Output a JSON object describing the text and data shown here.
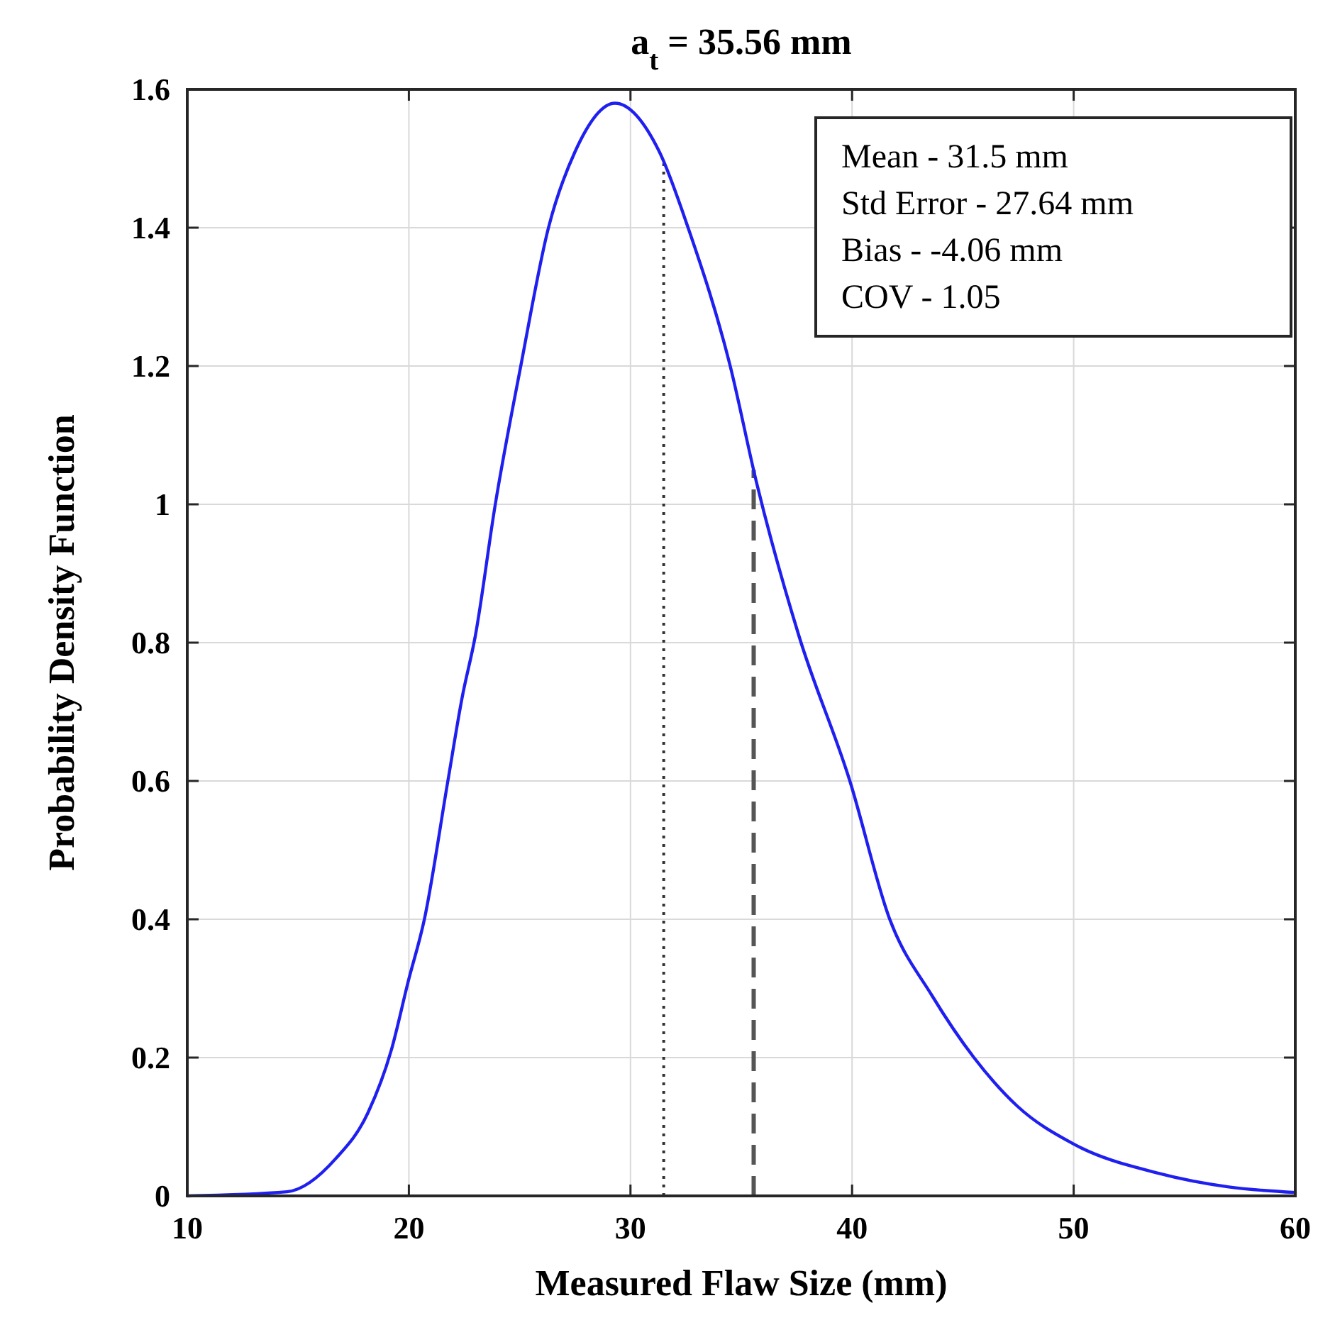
{
  "chart_data": {
    "type": "line",
    "title": "a$_{t}$ = 35.56 mm",
    "xlabel": "Measured Flaw Size (mm)",
    "ylabel": "Probability Density Function",
    "x": [
      10,
      14.5,
      16.7,
      18.15,
      19.2,
      19.97,
      20.7,
      21.76,
      22.4,
      23.0,
      23.9,
      25.05,
      26.3,
      27.5,
      29.3,
      31.3,
      32.6,
      34.5,
      35.7,
      37.6,
      39.9,
      41.7,
      43.6,
      45.5,
      47.45,
      50,
      53.8,
      57.0,
      60
    ],
    "series": [
      {
        "color": "#1f1ff0",
        "values": [
          0,
          0.006,
          0.054,
          0.12,
          0.21,
          0.31,
          0.4,
          0.6,
          0.72,
          0.81,
          1.0,
          1.2,
          1.4,
          1.51,
          1.58,
          1.51,
          1.4,
          1.2,
          1.03,
          0.81,
          0.6,
          0.4,
          0.29,
          0.2,
          0.13,
          0.075,
          0.033,
          0.013,
          0.005
        ]
      }
    ],
    "xlim": [
      10,
      60
    ],
    "xticks": [
      10,
      20,
      30,
      40,
      50,
      60
    ],
    "ylim": [
      0,
      1.6
    ],
    "yticks": [
      0,
      0.2,
      0.4,
      0.6,
      0.8,
      1,
      1.2,
      1.4,
      1.6
    ],
    "grid": true,
    "ref_lines": [
      {
        "axis": "x",
        "value": 31.5,
        "color": "#333333",
        "line_style": "dotted"
      },
      {
        "axis": "x",
        "value": 35.56,
        "color": "#555555",
        "line_style": "dashed"
      }
    ],
    "annotations": [
      "Mean - 31.5 mm",
      "Std Error - 27.64 mm",
      "Bias - -4.06 mm",
      "COV - 1.05"
    ]
  }
}
